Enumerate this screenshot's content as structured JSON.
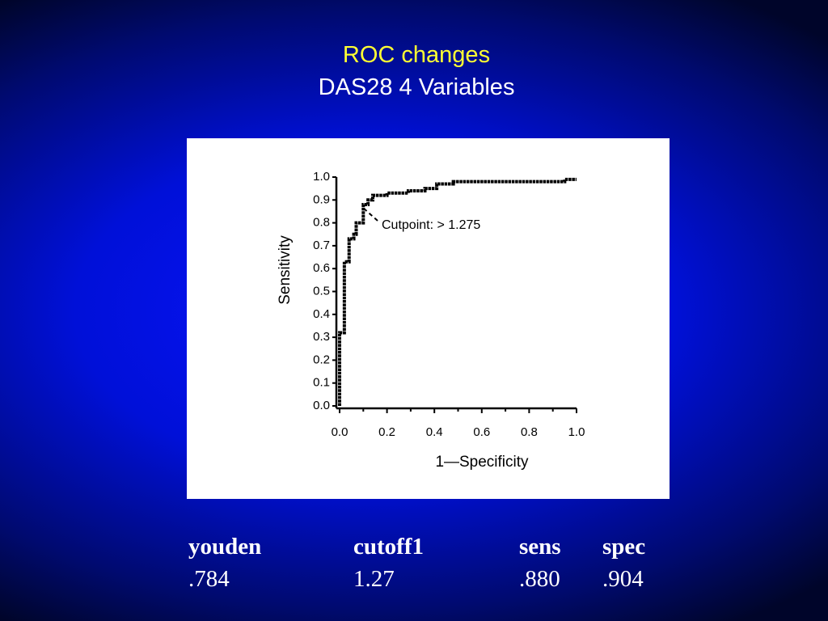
{
  "slide_title": "ROC changes",
  "slide_subtitle": "DAS28 4 Variables",
  "chart_data": {
    "type": "line",
    "xlabel": "1—Specificity",
    "ylabel": "Sensitivity",
    "annotation": "Cutpoint:  >  1.275",
    "series": [
      {
        "name": "ROC",
        "color": "#000000",
        "x": [
          0,
          0,
          0.02,
          0.02,
          0.04,
          0.04,
          0.06,
          0.06,
          0.07,
          0.07,
          0.1,
          0.1,
          0.12,
          0.12,
          0.14,
          0.14,
          0.2,
          0.2,
          0.29,
          0.29,
          0.36,
          0.36,
          0.41,
          0.41,
          0.48,
          0.48,
          0.95,
          0.95,
          1.0
        ],
        "values": [
          0,
          0.32,
          0.32,
          0.63,
          0.63,
          0.73,
          0.73,
          0.75,
          0.75,
          0.8,
          0.8,
          0.88,
          0.88,
          0.9,
          0.9,
          0.92,
          0.92,
          0.93,
          0.93,
          0.94,
          0.94,
          0.95,
          0.95,
          0.97,
          0.97,
          0.98,
          0.98,
          0.99,
          0.99
        ]
      }
    ],
    "xlim": [
      0,
      1
    ],
    "ylim": [
      0,
      1
    ],
    "xticks": [
      {
        "value": 0,
        "label": "0.0"
      },
      0.2,
      0.4,
      0.6,
      0.8,
      {
        "value": 1,
        "label": "1.0"
      }
    ],
    "yticks": [
      {
        "value": 0,
        "label": "0.0"
      },
      0.1,
      0.2,
      0.3,
      0.4,
      0.5,
      0.6,
      0.7,
      0.8,
      0.9,
      {
        "value": 1,
        "label": "1.0"
      }
    ]
  },
  "table": {
    "header": [
      "youden",
      "cutoff1",
      "sens",
      "spec"
    ],
    "rows": [
      [
        ".784",
        "1.27",
        ".880",
        ".904"
      ]
    ]
  }
}
